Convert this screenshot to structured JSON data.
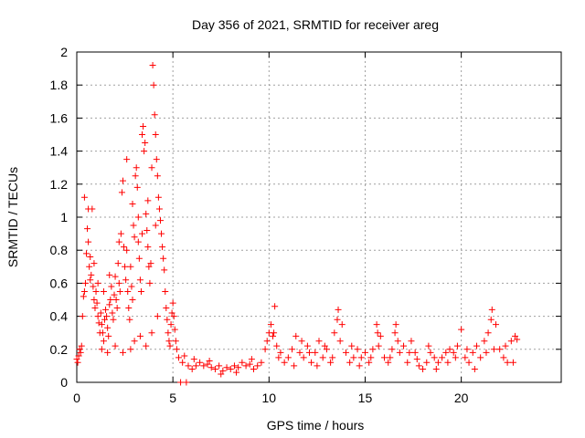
{
  "chart_data": {
    "type": "scatter",
    "title": "Day 356 of 2021, SRMTID for receiver areg",
    "xlabel": "GPS time / hours",
    "ylabel": "SRMTID / TECUs",
    "xlim": [
      0,
      25.2
    ],
    "ylim": [
      0,
      2
    ],
    "xticks": [
      0,
      5,
      10,
      15,
      20
    ],
    "yticks": [
      0,
      0.2,
      0.4,
      0.6,
      0.8,
      1,
      1.2,
      1.4,
      1.6,
      1.8,
      2
    ],
    "xtick_labels": [
      "0",
      "5",
      "10",
      "15",
      "20"
    ],
    "ytick_labels": [
      "0",
      "0.2",
      "0.4",
      "0.6",
      "0.8",
      "1",
      "1.2",
      "1.4",
      "1.6",
      "1.8",
      "2"
    ],
    "grid": true,
    "marker": "+",
    "color": "#ff0000",
    "series": [
      {
        "name": "SRMTID",
        "points": [
          [
            0.0,
            0.14
          ],
          [
            0.05,
            0.12
          ],
          [
            0.1,
            0.16
          ],
          [
            0.15,
            0.2
          ],
          [
            0.2,
            0.18
          ],
          [
            0.25,
            0.22
          ],
          [
            0.3,
            0.4
          ],
          [
            0.35,
            0.52
          ],
          [
            0.4,
            0.55
          ],
          [
            0.45,
            0.6
          ],
          [
            0.5,
            0.78
          ],
          [
            0.55,
            0.93
          ],
          [
            0.6,
            0.85
          ],
          [
            0.65,
            0.7
          ],
          [
            0.7,
            0.62
          ],
          [
            0.75,
            0.65
          ],
          [
            0.8,
            1.05
          ],
          [
            0.85,
            0.58
          ],
          [
            0.9,
            0.5
          ],
          [
            0.95,
            0.45
          ],
          [
            0.4,
            1.12
          ],
          [
            0.6,
            1.05
          ],
          [
            0.7,
            0.76
          ],
          [
            0.9,
            0.72
          ],
          [
            1.0,
            0.55
          ],
          [
            1.05,
            0.48
          ],
          [
            1.1,
            0.4
          ],
          [
            1.15,
            0.36
          ],
          [
            1.2,
            0.3
          ],
          [
            1.25,
            0.42
          ],
          [
            1.3,
            0.35
          ],
          [
            1.35,
            0.3
          ],
          [
            1.4,
            0.25
          ],
          [
            1.45,
            0.38
          ],
          [
            1.5,
            0.44
          ],
          [
            1.55,
            0.4
          ],
          [
            1.6,
            0.33
          ],
          [
            1.65,
            0.28
          ],
          [
            1.7,
            0.47
          ],
          [
            1.75,
            0.5
          ],
          [
            1.8,
            0.58
          ],
          [
            1.85,
            0.42
          ],
          [
            1.9,
            0.38
          ],
          [
            1.95,
            0.53
          ],
          [
            2.0,
            0.64
          ],
          [
            2.05,
            0.5
          ],
          [
            2.1,
            0.45
          ],
          [
            2.15,
            0.72
          ],
          [
            2.2,
            0.6
          ],
          [
            2.25,
            0.55
          ],
          [
            2.3,
            0.9
          ],
          [
            2.35,
            1.15
          ],
          [
            2.4,
            1.22
          ],
          [
            2.45,
            0.82
          ],
          [
            2.5,
            0.7
          ],
          [
            2.55,
            0.62
          ],
          [
            2.6,
            1.35
          ],
          [
            2.65,
            0.55
          ],
          [
            2.7,
            0.45
          ],
          [
            2.75,
            0.38
          ],
          [
            2.8,
            0.7
          ],
          [
            2.85,
            0.58
          ],
          [
            2.9,
            0.5
          ],
          [
            2.95,
            0.95
          ],
          [
            3.0,
            0.88
          ],
          [
            3.05,
            1.25
          ],
          [
            3.1,
            1.3
          ],
          [
            3.15,
            1.18
          ],
          [
            3.2,
            0.85
          ],
          [
            3.25,
            0.75
          ],
          [
            3.3,
            0.62
          ],
          [
            3.35,
            0.55
          ],
          [
            3.4,
            1.5
          ],
          [
            3.45,
            1.55
          ],
          [
            3.5,
            1.4
          ],
          [
            3.55,
            1.45
          ],
          [
            3.6,
            1.02
          ],
          [
            3.65,
            0.92
          ],
          [
            3.7,
            0.82
          ],
          [
            3.75,
            0.7
          ],
          [
            3.8,
            0.6
          ],
          [
            3.85,
            0.72
          ],
          [
            3.9,
            1.3
          ],
          [
            3.95,
            1.92
          ],
          [
            4.0,
            1.8
          ],
          [
            4.05,
            1.62
          ],
          [
            4.1,
            1.5
          ],
          [
            4.15,
            1.35
          ],
          [
            4.2,
            1.25
          ],
          [
            4.25,
            1.12
          ],
          [
            4.3,
            1.05
          ],
          [
            4.35,
            0.98
          ],
          [
            4.4,
            0.9
          ],
          [
            4.45,
            0.82
          ],
          [
            4.5,
            0.75
          ],
          [
            4.55,
            0.68
          ],
          [
            4.6,
            0.55
          ],
          [
            4.65,
            0.45
          ],
          [
            4.7,
            0.38
          ],
          [
            4.75,
            0.3
          ],
          [
            4.8,
            0.25
          ],
          [
            4.85,
            0.22
          ],
          [
            4.9,
            0.35
          ],
          [
            4.95,
            0.42
          ],
          [
            5.0,
            0.48
          ],
          [
            5.05,
            0.4
          ],
          [
            5.1,
            0.32
          ],
          [
            5.15,
            0.25
          ],
          [
            5.2,
            0.2
          ],
          [
            5.3,
            0.15
          ],
          [
            1.3,
            0.2
          ],
          [
            1.6,
            0.18
          ],
          [
            2.0,
            0.22
          ],
          [
            2.4,
            0.18
          ],
          [
            2.8,
            0.2
          ],
          [
            3.0,
            0.25
          ],
          [
            3.3,
            0.28
          ],
          [
            3.6,
            0.22
          ],
          [
            3.9,
            0.3
          ],
          [
            4.2,
            0.4
          ],
          [
            1.1,
            0.6
          ],
          [
            1.4,
            0.55
          ],
          [
            1.7,
            0.65
          ],
          [
            2.2,
            0.85
          ],
          [
            2.6,
            0.8
          ],
          [
            3.2,
            1.0
          ],
          [
            3.7,
            1.1
          ],
          [
            4.1,
            0.95
          ],
          [
            2.9,
            1.08
          ],
          [
            3.4,
            0.9
          ],
          [
            5.4,
            0.0
          ],
          [
            5.7,
            0.0
          ],
          [
            5.5,
            0.12
          ],
          [
            5.8,
            0.1
          ],
          [
            6.0,
            0.08
          ],
          [
            6.2,
            0.1
          ],
          [
            6.4,
            0.12
          ],
          [
            6.6,
            0.1
          ],
          [
            6.8,
            0.11
          ],
          [
            7.0,
            0.09
          ],
          [
            7.2,
            0.08
          ],
          [
            7.4,
            0.1
          ],
          [
            7.6,
            0.07
          ],
          [
            7.8,
            0.09
          ],
          [
            8.0,
            0.08
          ],
          [
            8.2,
            0.1
          ],
          [
            8.4,
            0.09
          ],
          [
            8.6,
            0.12
          ],
          [
            8.8,
            0.1
          ],
          [
            9.0,
            0.11
          ],
          [
            9.2,
            0.08
          ],
          [
            9.4,
            0.1
          ],
          [
            9.6,
            0.12
          ],
          [
            9.8,
            0.2
          ],
          [
            10.0,
            0.3
          ],
          [
            10.2,
            0.28
          ],
          [
            10.3,
            0.46
          ],
          [
            10.4,
            0.22
          ],
          [
            10.6,
            0.18
          ],
          [
            10.8,
            0.12
          ],
          [
            11.0,
            0.15
          ],
          [
            11.2,
            0.2
          ],
          [
            11.4,
            0.28
          ],
          [
            11.6,
            0.18
          ],
          [
            11.8,
            0.15
          ],
          [
            12.0,
            0.22
          ],
          [
            12.2,
            0.12
          ],
          [
            12.4,
            0.18
          ],
          [
            12.6,
            0.25
          ],
          [
            12.8,
            0.15
          ],
          [
            13.0,
            0.2
          ],
          [
            13.2,
            0.12
          ],
          [
            13.4,
            0.3
          ],
          [
            13.6,
            0.44
          ],
          [
            13.8,
            0.35
          ],
          [
            14.0,
            0.18
          ],
          [
            14.2,
            0.12
          ],
          [
            14.4,
            0.15
          ],
          [
            14.6,
            0.2
          ],
          [
            14.8,
            0.15
          ],
          [
            15.0,
            0.18
          ],
          [
            15.2,
            0.12
          ],
          [
            15.4,
            0.2
          ],
          [
            15.6,
            0.35
          ],
          [
            15.8,
            0.28
          ],
          [
            16.0,
            0.15
          ],
          [
            16.2,
            0.12
          ],
          [
            16.4,
            0.2
          ],
          [
            16.6,
            0.35
          ],
          [
            16.8,
            0.18
          ],
          [
            17.0,
            0.22
          ],
          [
            17.2,
            0.12
          ],
          [
            17.4,
            0.25
          ],
          [
            17.6,
            0.18
          ],
          [
            17.8,
            0.1
          ],
          [
            18.0,
            0.08
          ],
          [
            18.2,
            0.12
          ],
          [
            18.4,
            0.18
          ],
          [
            18.6,
            0.15
          ],
          [
            18.8,
            0.12
          ],
          [
            19.0,
            0.15
          ],
          [
            19.2,
            0.18
          ],
          [
            19.4,
            0.2
          ],
          [
            19.6,
            0.18
          ],
          [
            19.8,
            0.22
          ],
          [
            20.0,
            0.32
          ],
          [
            20.2,
            0.15
          ],
          [
            20.4,
            0.12
          ],
          [
            20.6,
            0.18
          ],
          [
            20.8,
            0.22
          ],
          [
            21.0,
            0.15
          ],
          [
            21.2,
            0.25
          ],
          [
            21.4,
            0.3
          ],
          [
            21.6,
            0.44
          ],
          [
            21.8,
            0.35
          ],
          [
            22.0,
            0.2
          ],
          [
            22.2,
            0.15
          ],
          [
            22.4,
            0.12
          ],
          [
            22.6,
            0.25
          ],
          [
            22.8,
            0.28
          ],
          [
            5.6,
            0.16
          ],
          [
            6.1,
            0.14
          ],
          [
            6.9,
            0.13
          ],
          [
            7.5,
            0.05
          ],
          [
            8.3,
            0.06
          ],
          [
            9.1,
            0.14
          ],
          [
            9.9,
            0.25
          ],
          [
            10.1,
            0.35
          ],
          [
            10.5,
            0.15
          ],
          [
            11.3,
            0.1
          ],
          [
            11.7,
            0.25
          ],
          [
            12.1,
            0.18
          ],
          [
            12.5,
            0.1
          ],
          [
            12.9,
            0.22
          ],
          [
            13.3,
            0.15
          ],
          [
            13.7,
            0.25
          ],
          [
            14.3,
            0.22
          ],
          [
            14.7,
            0.1
          ],
          [
            15.3,
            0.15
          ],
          [
            15.7,
            0.22
          ],
          [
            16.3,
            0.15
          ],
          [
            16.7,
            0.25
          ],
          [
            17.3,
            0.18
          ],
          [
            17.7,
            0.14
          ],
          [
            18.3,
            0.22
          ],
          [
            18.7,
            0.08
          ],
          [
            19.3,
            0.12
          ],
          [
            19.7,
            0.15
          ],
          [
            20.3,
            0.2
          ],
          [
            20.7,
            0.08
          ],
          [
            21.3,
            0.18
          ],
          [
            21.7,
            0.2
          ],
          [
            22.3,
            0.22
          ],
          [
            22.7,
            0.12
          ],
          [
            10.25,
            0.3
          ],
          [
            13.55,
            0.38
          ],
          [
            15.65,
            0.3
          ],
          [
            16.55,
            0.3
          ],
          [
            21.55,
            0.38
          ],
          [
            22.9,
            0.26
          ]
        ]
      }
    ]
  }
}
